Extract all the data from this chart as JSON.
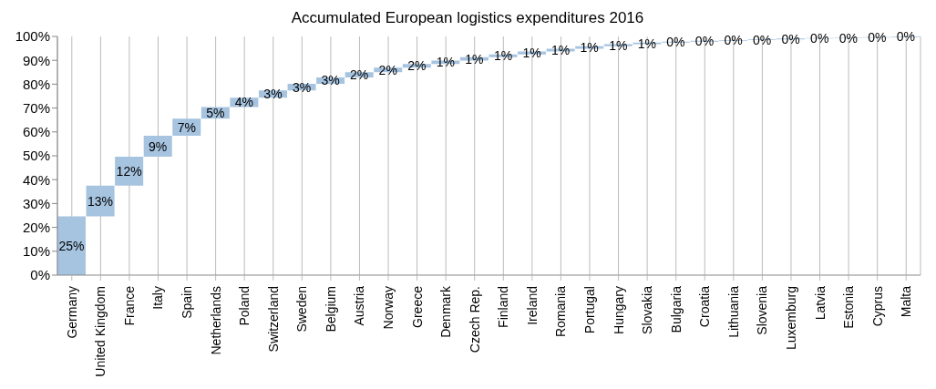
{
  "chart_data": {
    "type": "bar",
    "title": "Accumulated European logistics expenditures 2016",
    "categories": [
      "Germany",
      "United Kingdom",
      "France",
      "Italy",
      "Spain",
      "Netherlands",
      "Poland",
      "Switzerland",
      "Sweden",
      "Belgium",
      "Austria",
      "Norway",
      "Greece",
      "Denmark",
      "Czech Rep.",
      "Finland",
      "Ireland",
      "Romania",
      "Portugal",
      "Hungary",
      "Slovakia",
      "Bulgaria",
      "Croatia",
      "Lithuania",
      "Slovenia",
      "Luxemburg",
      "Latvia",
      "Estonia",
      "Cyprus",
      "Malta"
    ],
    "values": [
      24.6,
      12.9,
      12.1,
      8.8,
      7.2,
      4.8,
      3.9,
      3.1,
      2.8,
      2.6,
      2.2,
      1.9,
      1.6,
      1.4,
      1.4,
      1.2,
      1.2,
      1.1,
      1.1,
      0.9,
      0.6,
      0.4,
      0.4,
      0.3,
      0.3,
      0.3,
      0.2,
      0.2,
      0.2,
      0.3
    ],
    "base": [
      0,
      24.6,
      37.5,
      49.6,
      58.4,
      65.6,
      70.4,
      74.3,
      77.4,
      80.2,
      82.8,
      85.0,
      86.9,
      88.5,
      89.9,
      91.3,
      92.5,
      93.7,
      94.8,
      95.9,
      96.8,
      97.4,
      97.8,
      98.2,
      98.5,
      98.8,
      99.1,
      99.3,
      99.5,
      99.7
    ],
    "value_labels": [
      "25%",
      "13%",
      "12%",
      "9%",
      "7%",
      "5%",
      "4%",
      "3%",
      "3%",
      "3%",
      "2%",
      "2%",
      "2%",
      "1%",
      "1%",
      "1%",
      "1%",
      "1%",
      "1%",
      "1%",
      "1%",
      "0%",
      "0%",
      "0%",
      "0%",
      "0%",
      "0%",
      "0%",
      "0%",
      "0%"
    ],
    "color": "#a6c3df",
    "ylim": [
      0,
      100
    ],
    "yticks": [
      {
        "value": 0,
        "label": "0%"
      },
      {
        "value": 10,
        "label": "10%"
      },
      {
        "value": 20,
        "label": "20%"
      },
      {
        "value": 30,
        "label": "30%"
      },
      {
        "value": 40,
        "label": "40%"
      },
      {
        "value": 50,
        "label": "50%"
      },
      {
        "value": 60,
        "label": "60%"
      },
      {
        "value": 70,
        "label": "70%"
      },
      {
        "value": 80,
        "label": "80%"
      },
      {
        "value": 90,
        "label": "90%"
      },
      {
        "value": 100,
        "label": "100%"
      }
    ],
    "grid": "x",
    "legend": false
  }
}
